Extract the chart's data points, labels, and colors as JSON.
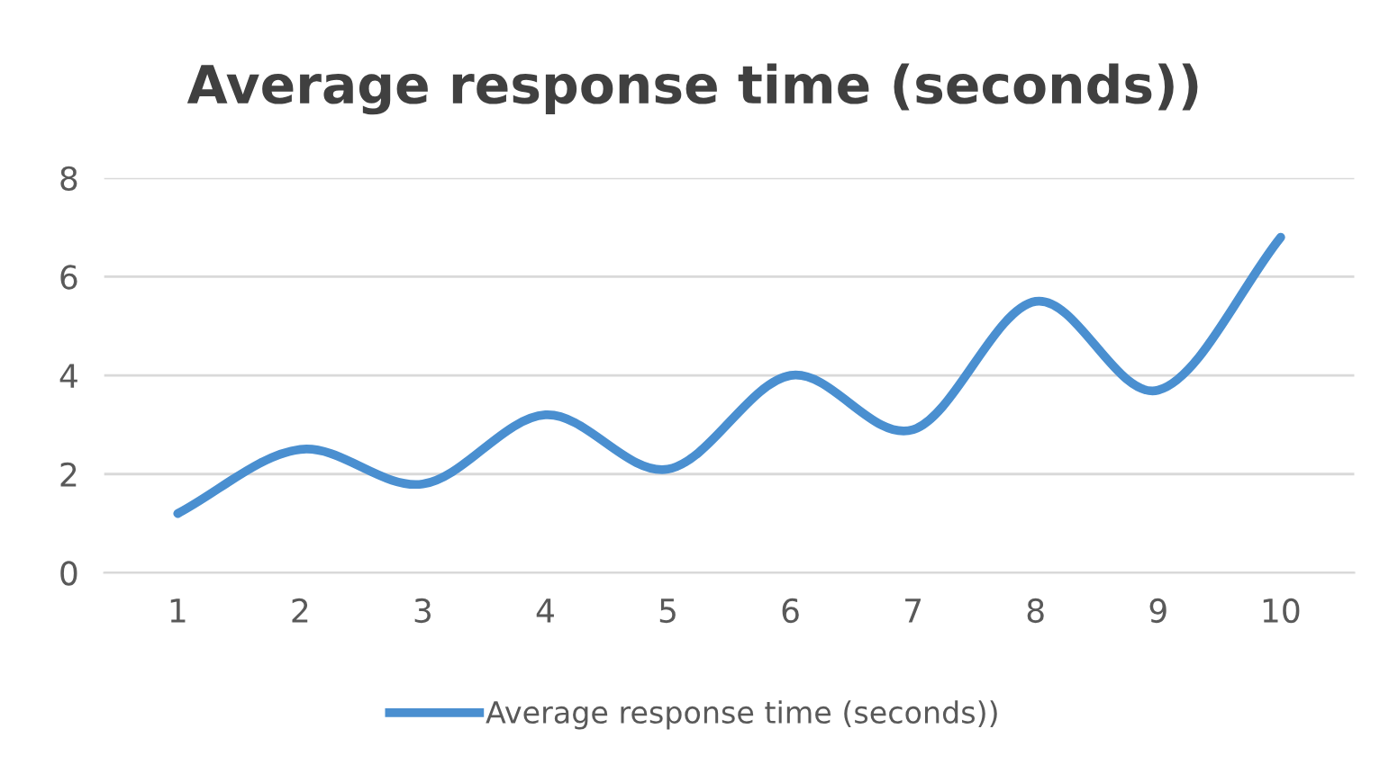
{
  "chart_data": {
    "type": "line",
    "title": "Average response time (seconds))",
    "categories": [
      "1",
      "2",
      "3",
      "4",
      "5",
      "6",
      "7",
      "8",
      "9",
      "10"
    ],
    "series": [
      {
        "name": "Average response time (seconds))",
        "color": "#4a8fd0",
        "values": [
          1.2,
          2.5,
          1.8,
          3.2,
          2.1,
          4.0,
          2.9,
          5.5,
          3.7,
          6.8
        ]
      }
    ],
    "ylim": [
      0,
      8
    ],
    "yticks": [
      0,
      2,
      4,
      6,
      8
    ],
    "grid": "y",
    "legend": "bottom",
    "marker": "none",
    "line_style": "solid"
  }
}
